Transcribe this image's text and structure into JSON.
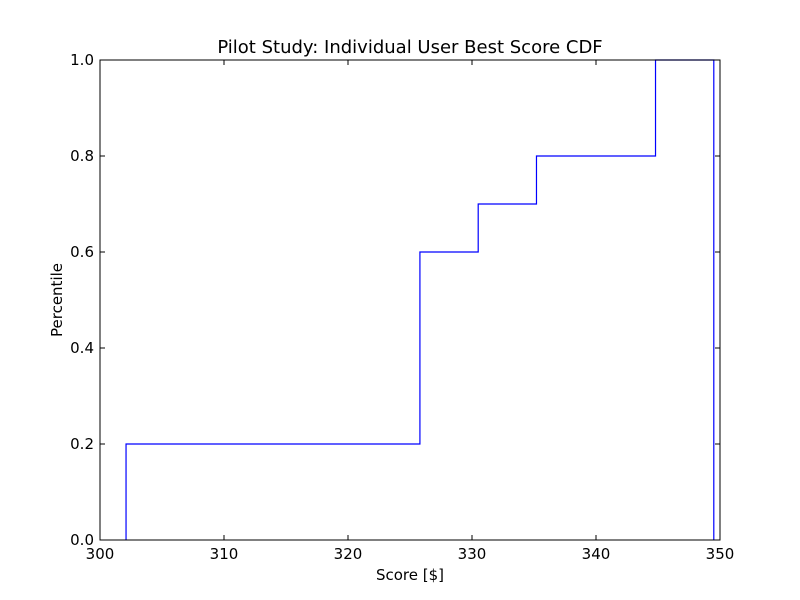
{
  "chart_data": {
    "type": "line",
    "style": "step",
    "title": "Pilot Study: Individual User Best Score CDF",
    "xlabel": "Score [$]",
    "ylabel": "Percentile",
    "xlim": [
      300,
      350
    ],
    "ylim": [
      0,
      1
    ],
    "xticks": [
      300,
      310,
      320,
      330,
      340,
      350
    ],
    "yticks": [
      0.0,
      0.2,
      0.4,
      0.6,
      0.8,
      1.0
    ],
    "ytick_labels": [
      "0.0",
      "0.2",
      "0.4",
      "0.6",
      "0.8",
      "1.0"
    ],
    "grid": false,
    "series": [
      {
        "color": "#0000ff",
        "x": [
          302.1,
          302.1,
          325.8,
          325.8,
          330.5,
          330.5,
          335.2,
          335.2,
          344.8,
          344.8,
          349.5,
          349.5
        ],
        "y": [
          0.0,
          0.2,
          0.2,
          0.6,
          0.6,
          0.7,
          0.7,
          0.8,
          0.8,
          1.0,
          1.0,
          0.0
        ]
      }
    ]
  }
}
